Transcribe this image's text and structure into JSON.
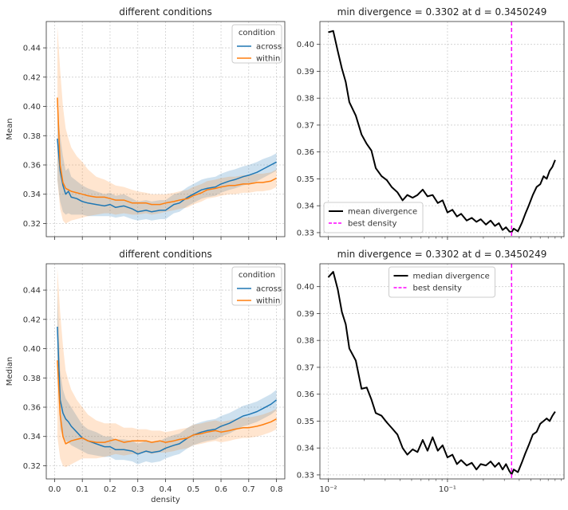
{
  "chart_data": [
    {
      "panel": "top-left",
      "type": "line",
      "title": "different conditions",
      "xlabel": "",
      "ylabel": "Mean",
      "xlim": [
        -0.03,
        0.83
      ],
      "ylim": [
        0.311,
        0.458
      ],
      "xscale": "linear",
      "yticks": [
        0.32,
        0.34,
        0.36,
        0.38,
        0.4,
        0.42,
        0.44
      ],
      "ytick_labels": [
        "0.32",
        "0.34",
        "0.36",
        "0.38",
        "0.40",
        "0.42",
        "0.44"
      ],
      "xticks": [
        0.0,
        0.1,
        0.2,
        0.3,
        0.4,
        0.5,
        0.6,
        0.7,
        0.8
      ],
      "xtick_labels": [],
      "grid": true,
      "legend": {
        "title": "condition",
        "placement": "top-right"
      },
      "series": [
        {
          "name": "across",
          "color": "#1f77b4",
          "band_opacity": 0.22,
          "x": [
            0.01,
            0.02,
            0.03,
            0.04,
            0.05,
            0.06,
            0.08,
            0.1,
            0.12,
            0.15,
            0.18,
            0.2,
            0.22,
            0.25,
            0.28,
            0.3,
            0.33,
            0.35,
            0.38,
            0.4,
            0.43,
            0.45,
            0.48,
            0.5,
            0.53,
            0.55,
            0.58,
            0.6,
            0.63,
            0.65,
            0.68,
            0.7,
            0.73,
            0.75,
            0.78,
            0.8
          ],
          "y": [
            0.378,
            0.356,
            0.346,
            0.34,
            0.342,
            0.338,
            0.337,
            0.335,
            0.334,
            0.333,
            0.332,
            0.333,
            0.331,
            0.332,
            0.33,
            0.328,
            0.329,
            0.328,
            0.329,
            0.329,
            0.333,
            0.334,
            0.338,
            0.34,
            0.343,
            0.344,
            0.345,
            0.347,
            0.349,
            0.35,
            0.352,
            0.353,
            0.355,
            0.357,
            0.36,
            0.362
          ],
          "lower": [
            0.35,
            0.335,
            0.328,
            0.326,
            0.327,
            0.326,
            0.326,
            0.326,
            0.325,
            0.325,
            0.325,
            0.325,
            0.324,
            0.325,
            0.323,
            0.322,
            0.323,
            0.322,
            0.323,
            0.323,
            0.327,
            0.328,
            0.332,
            0.334,
            0.337,
            0.338,
            0.339,
            0.341,
            0.343,
            0.344,
            0.346,
            0.347,
            0.349,
            0.351,
            0.354,
            0.356
          ],
          "upper": [
            0.4,
            0.38,
            0.366,
            0.356,
            0.358,
            0.352,
            0.349,
            0.346,
            0.344,
            0.342,
            0.34,
            0.341,
            0.339,
            0.34,
            0.337,
            0.335,
            0.336,
            0.335,
            0.336,
            0.336,
            0.34,
            0.341,
            0.345,
            0.347,
            0.35,
            0.351,
            0.352,
            0.354,
            0.356,
            0.357,
            0.359,
            0.36,
            0.362,
            0.364,
            0.366,
            0.368
          ]
        },
        {
          "name": "within",
          "color": "#ff7f0e",
          "band_opacity": 0.2,
          "x": [
            0.01,
            0.02,
            0.03,
            0.04,
            0.05,
            0.06,
            0.08,
            0.1,
            0.12,
            0.15,
            0.18,
            0.2,
            0.22,
            0.25,
            0.28,
            0.3,
            0.33,
            0.35,
            0.38,
            0.4,
            0.43,
            0.45,
            0.48,
            0.5,
            0.53,
            0.55,
            0.58,
            0.6,
            0.63,
            0.65,
            0.68,
            0.7,
            0.73,
            0.75,
            0.78,
            0.8
          ],
          "y": [
            0.406,
            0.36,
            0.348,
            0.344,
            0.343,
            0.342,
            0.341,
            0.34,
            0.339,
            0.338,
            0.338,
            0.337,
            0.336,
            0.336,
            0.334,
            0.334,
            0.334,
            0.333,
            0.333,
            0.334,
            0.335,
            0.336,
            0.337,
            0.339,
            0.341,
            0.343,
            0.344,
            0.345,
            0.346,
            0.346,
            0.347,
            0.347,
            0.348,
            0.348,
            0.349,
            0.351
          ],
          "lower": [
            0.35,
            0.33,
            0.322,
            0.32,
            0.321,
            0.322,
            0.323,
            0.324,
            0.325,
            0.326,
            0.327,
            0.327,
            0.326,
            0.327,
            0.326,
            0.326,
            0.327,
            0.326,
            0.327,
            0.328,
            0.329,
            0.33,
            0.331,
            0.333,
            0.335,
            0.337,
            0.338,
            0.339,
            0.34,
            0.34,
            0.341,
            0.341,
            0.342,
            0.342,
            0.343,
            0.345
          ],
          "upper": [
            0.455,
            0.425,
            0.4,
            0.385,
            0.378,
            0.372,
            0.366,
            0.362,
            0.357,
            0.352,
            0.35,
            0.348,
            0.346,
            0.345,
            0.343,
            0.342,
            0.341,
            0.34,
            0.34,
            0.34,
            0.341,
            0.342,
            0.343,
            0.345,
            0.347,
            0.349,
            0.35,
            0.351,
            0.352,
            0.352,
            0.353,
            0.353,
            0.354,
            0.354,
            0.355,
            0.357
          ]
        }
      ]
    },
    {
      "panel": "top-right",
      "type": "line",
      "title": "min divergence = 0.3302 at d = 0.3450249",
      "xlabel": "",
      "ylabel": "",
      "xlim": [
        0.0085,
        0.95
      ],
      "ylim": [
        0.3285,
        0.4085
      ],
      "xscale": "log",
      "yticks": [
        0.33,
        0.34,
        0.35,
        0.36,
        0.37,
        0.38,
        0.39,
        0.4
      ],
      "ytick_labels": [
        "0.33",
        "0.34",
        "0.35",
        "0.36",
        "0.37",
        "0.38",
        "0.39",
        "0.40"
      ],
      "xticks": [
        0.01,
        0.1
      ],
      "xtick_labels": [],
      "grid": true,
      "legend": {
        "placement": "lower-left"
      },
      "series": [
        {
          "name": "mean divergence",
          "color": "#000000",
          "x": [
            0.01,
            0.011,
            0.012,
            0.013,
            0.014,
            0.015,
            0.017,
            0.019,
            0.021,
            0.023,
            0.025,
            0.028,
            0.031,
            0.034,
            0.038,
            0.042,
            0.046,
            0.051,
            0.056,
            0.062,
            0.068,
            0.075,
            0.083,
            0.091,
            0.1,
            0.11,
            0.12,
            0.13,
            0.145,
            0.16,
            0.175,
            0.19,
            0.21,
            0.23,
            0.25,
            0.27,
            0.29,
            0.31,
            0.33,
            0.345,
            0.36,
            0.39,
            0.42,
            0.45,
            0.48,
            0.52,
            0.56,
            0.6,
            0.64,
            0.68,
            0.72,
            0.76,
            0.8
          ],
          "y": [
            0.4045,
            0.405,
            0.3975,
            0.391,
            0.386,
            0.3785,
            0.3735,
            0.3665,
            0.363,
            0.3605,
            0.354,
            0.351,
            0.3495,
            0.347,
            0.345,
            0.342,
            0.344,
            0.343,
            0.344,
            0.346,
            0.3435,
            0.344,
            0.341,
            0.342,
            0.3375,
            0.3385,
            0.336,
            0.337,
            0.3345,
            0.3355,
            0.334,
            0.335,
            0.333,
            0.3345,
            0.3325,
            0.3335,
            0.331,
            0.332,
            0.3305,
            0.3302,
            0.3315,
            0.3305,
            0.3335,
            0.337,
            0.34,
            0.344,
            0.347,
            0.348,
            0.351,
            0.35,
            0.353,
            0.3545,
            0.357
          ]
        }
      ],
      "vline": {
        "name": "best density",
        "x": 0.3450249,
        "color": "#ff00ff",
        "style": "dashed"
      }
    },
    {
      "panel": "bottom-left",
      "type": "line",
      "title": "different conditions",
      "xlabel": "density",
      "ylabel": "Median",
      "xlim": [
        -0.03,
        0.83
      ],
      "ylim": [
        0.311,
        0.458
      ],
      "xscale": "linear",
      "yticks": [
        0.32,
        0.34,
        0.36,
        0.38,
        0.4,
        0.42,
        0.44
      ],
      "ytick_labels": [
        "0.32",
        "0.34",
        "0.36",
        "0.38",
        "0.40",
        "0.42",
        "0.44"
      ],
      "xticks": [
        0.0,
        0.1,
        0.2,
        0.3,
        0.4,
        0.5,
        0.6,
        0.7,
        0.8
      ],
      "xtick_labels": [
        "0.0",
        "0.1",
        "0.2",
        "0.3",
        "0.4",
        "0.5",
        "0.6",
        "0.7",
        "0.8"
      ],
      "grid": true,
      "legend": {
        "title": "condition",
        "placement": "top-right"
      },
      "series": [
        {
          "name": "across",
          "color": "#1f77b4",
          "band_opacity": 0.22,
          "x": [
            0.01,
            0.02,
            0.03,
            0.04,
            0.05,
            0.06,
            0.08,
            0.1,
            0.12,
            0.15,
            0.18,
            0.2,
            0.22,
            0.25,
            0.28,
            0.3,
            0.33,
            0.35,
            0.38,
            0.4,
            0.43,
            0.45,
            0.48,
            0.5,
            0.53,
            0.55,
            0.58,
            0.6,
            0.63,
            0.65,
            0.68,
            0.7,
            0.73,
            0.75,
            0.78,
            0.8
          ],
          "y": [
            0.415,
            0.365,
            0.356,
            0.352,
            0.35,
            0.347,
            0.343,
            0.339,
            0.337,
            0.335,
            0.333,
            0.333,
            0.331,
            0.331,
            0.33,
            0.328,
            0.33,
            0.329,
            0.33,
            0.332,
            0.334,
            0.335,
            0.339,
            0.341,
            0.343,
            0.344,
            0.345,
            0.347,
            0.349,
            0.351,
            0.354,
            0.355,
            0.357,
            0.359,
            0.362,
            0.365
          ],
          "lower": [
            0.385,
            0.345,
            0.34,
            0.337,
            0.336,
            0.334,
            0.332,
            0.33,
            0.328,
            0.327,
            0.326,
            0.326,
            0.324,
            0.324,
            0.323,
            0.321,
            0.323,
            0.322,
            0.323,
            0.325,
            0.327,
            0.328,
            0.332,
            0.334,
            0.336,
            0.337,
            0.338,
            0.34,
            0.342,
            0.344,
            0.347,
            0.348,
            0.35,
            0.352,
            0.355,
            0.358
          ],
          "upper": [
            0.44,
            0.385,
            0.372,
            0.366,
            0.363,
            0.36,
            0.354,
            0.348,
            0.345,
            0.343,
            0.34,
            0.34,
            0.338,
            0.338,
            0.337,
            0.335,
            0.337,
            0.336,
            0.337,
            0.339,
            0.341,
            0.342,
            0.346,
            0.348,
            0.35,
            0.351,
            0.352,
            0.354,
            0.356,
            0.358,
            0.361,
            0.362,
            0.364,
            0.366,
            0.369,
            0.372
          ]
        },
        {
          "name": "within",
          "color": "#ff7f0e",
          "band_opacity": 0.2,
          "x": [
            0.01,
            0.02,
            0.03,
            0.04,
            0.05,
            0.06,
            0.08,
            0.1,
            0.12,
            0.15,
            0.18,
            0.2,
            0.22,
            0.25,
            0.28,
            0.3,
            0.33,
            0.35,
            0.38,
            0.4,
            0.43,
            0.45,
            0.48,
            0.5,
            0.53,
            0.55,
            0.58,
            0.6,
            0.63,
            0.65,
            0.68,
            0.7,
            0.73,
            0.75,
            0.78,
            0.8
          ],
          "y": [
            0.392,
            0.355,
            0.34,
            0.335,
            0.336,
            0.337,
            0.338,
            0.339,
            0.337,
            0.336,
            0.336,
            0.337,
            0.338,
            0.336,
            0.337,
            0.337,
            0.337,
            0.336,
            0.337,
            0.336,
            0.337,
            0.338,
            0.339,
            0.341,
            0.342,
            0.343,
            0.344,
            0.343,
            0.344,
            0.345,
            0.346,
            0.346,
            0.347,
            0.348,
            0.35,
            0.352
          ],
          "lower": [
            0.34,
            0.325,
            0.32,
            0.319,
            0.32,
            0.321,
            0.323,
            0.325,
            0.325,
            0.325,
            0.326,
            0.327,
            0.328,
            0.327,
            0.328,
            0.328,
            0.329,
            0.328,
            0.329,
            0.329,
            0.33,
            0.331,
            0.332,
            0.334,
            0.335,
            0.336,
            0.337,
            0.336,
            0.337,
            0.338,
            0.339,
            0.339,
            0.34,
            0.341,
            0.343,
            0.345
          ],
          "upper": [
            0.455,
            0.425,
            0.402,
            0.385,
            0.378,
            0.372,
            0.365,
            0.36,
            0.355,
            0.351,
            0.349,
            0.349,
            0.349,
            0.346,
            0.346,
            0.345,
            0.345,
            0.344,
            0.344,
            0.343,
            0.344,
            0.345,
            0.346,
            0.348,
            0.349,
            0.35,
            0.351,
            0.35,
            0.351,
            0.352,
            0.353,
            0.353,
            0.354,
            0.355,
            0.357,
            0.359
          ]
        }
      ]
    },
    {
      "panel": "bottom-right",
      "type": "line",
      "title": "min divergence = 0.3302 at d = 0.3450249",
      "xlabel": "",
      "ylabel": "",
      "xlim": [
        0.0085,
        0.95
      ],
      "ylim": [
        0.3285,
        0.4085
      ],
      "xscale": "log",
      "yticks": [
        0.33,
        0.34,
        0.35,
        0.36,
        0.37,
        0.38,
        0.39,
        0.4
      ],
      "ytick_labels": [
        "0.33",
        "0.34",
        "0.35",
        "0.36",
        "0.37",
        "0.38",
        "0.39",
        "0.40"
      ],
      "xticks": [
        0.01,
        0.1
      ],
      "xtick_labels": [
        "10⁻²",
        "10⁻¹"
      ],
      "grid": true,
      "legend": {
        "placement": "upper-center"
      },
      "series": [
        {
          "name": "median divergence",
          "color": "#000000",
          "x": [
            0.01,
            0.011,
            0.012,
            0.013,
            0.014,
            0.015,
            0.017,
            0.019,
            0.021,
            0.023,
            0.025,
            0.028,
            0.031,
            0.034,
            0.038,
            0.042,
            0.046,
            0.051,
            0.056,
            0.062,
            0.068,
            0.075,
            0.083,
            0.091,
            0.1,
            0.11,
            0.12,
            0.13,
            0.145,
            0.16,
            0.175,
            0.19,
            0.21,
            0.23,
            0.25,
            0.27,
            0.29,
            0.31,
            0.33,
            0.345,
            0.36,
            0.39,
            0.42,
            0.45,
            0.48,
            0.52,
            0.56,
            0.6,
            0.64,
            0.68,
            0.72,
            0.76,
            0.8
          ],
          "y": [
            0.4035,
            0.4055,
            0.399,
            0.3905,
            0.386,
            0.377,
            0.3725,
            0.362,
            0.3625,
            0.358,
            0.353,
            0.352,
            0.3495,
            0.3475,
            0.345,
            0.34,
            0.3375,
            0.3395,
            0.3385,
            0.343,
            0.339,
            0.344,
            0.339,
            0.341,
            0.3365,
            0.3375,
            0.334,
            0.3355,
            0.3335,
            0.3345,
            0.332,
            0.334,
            0.3335,
            0.335,
            0.333,
            0.3345,
            0.332,
            0.334,
            0.3315,
            0.3302,
            0.332,
            0.331,
            0.3345,
            0.338,
            0.341,
            0.345,
            0.346,
            0.349,
            0.35,
            0.351,
            0.35,
            0.352,
            0.3535
          ]
        }
      ],
      "vline": {
        "name": "best density",
        "x": 0.3450249,
        "color": "#ff00ff",
        "style": "dashed"
      }
    }
  ]
}
